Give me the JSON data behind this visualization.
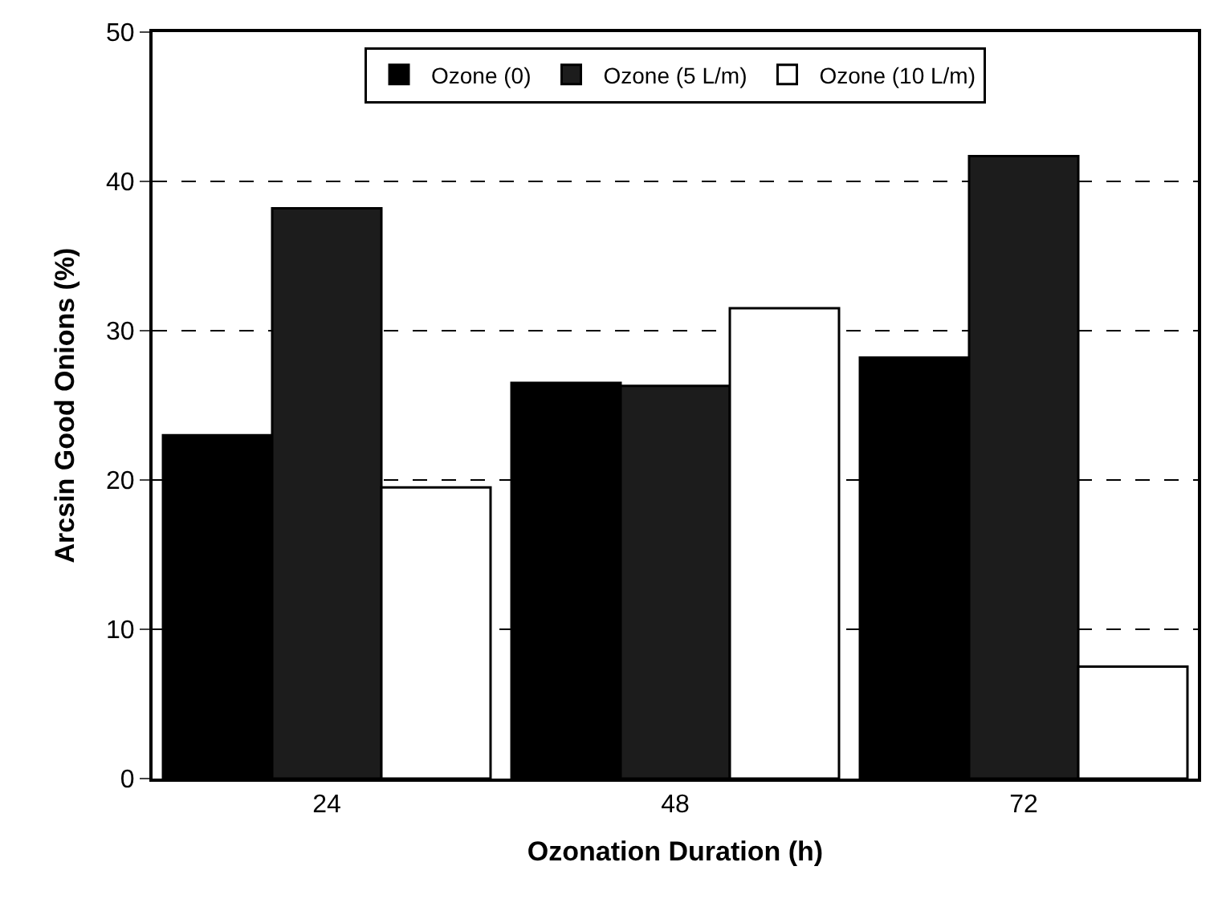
{
  "chart_data": {
    "type": "bar",
    "xlabel": "Ozonation Duration (h)",
    "ylabel": "Arcsin Good Onions (%)",
    "categories": [
      "24",
      "48",
      "72"
    ],
    "series": [
      {
        "name": "Ozone (0)",
        "color": "#000000",
        "values": [
          23,
          26.5,
          28.2
        ]
      },
      {
        "name": "Ozone (5 L/m)",
        "color": "#1c1c1c",
        "values": [
          38.2,
          26.3,
          41.7
        ]
      },
      {
        "name": "Ozone (10 L/m)",
        "color": "#ffffff",
        "values": [
          19.5,
          31.5,
          7.5
        ]
      }
    ],
    "ylim": [
      0,
      50
    ],
    "yticks": [
      0,
      10,
      20,
      30,
      40,
      50
    ],
    "grid": "y",
    "legend": "top"
  }
}
